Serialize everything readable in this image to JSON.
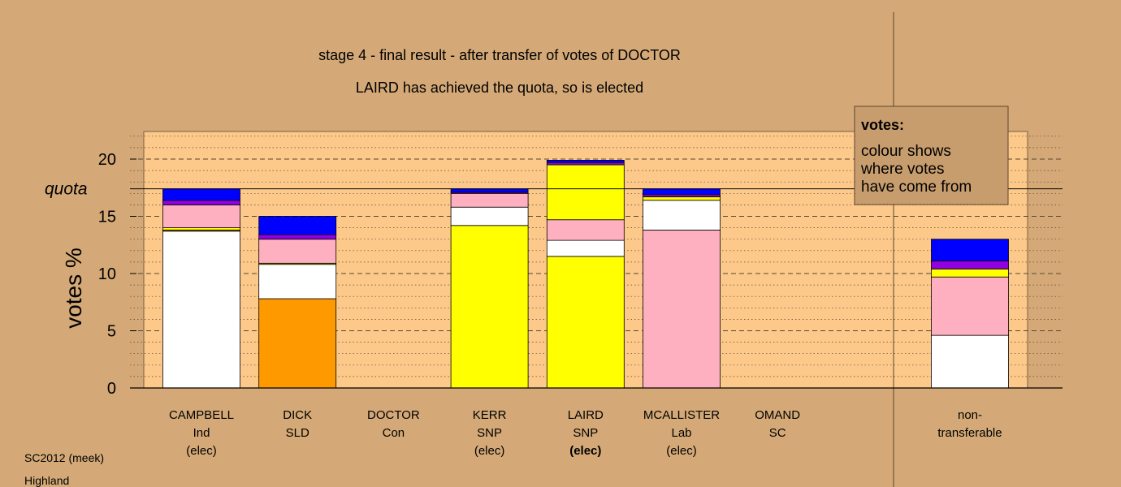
{
  "colors": {
    "background": "#d4a977",
    "plot_area": "#fcc98a",
    "legend_box": "#c89d6e",
    "Ind": "#ffffff",
    "SLD": "#ff9900",
    "SNP": "#ffff00",
    "Lab": "#ffb0c0",
    "SC": "#9000e0",
    "Con": "#0000ff"
  },
  "chart_data": {
    "type": "bar",
    "stacked": true,
    "title": "stage 4 - final result - after transfer of votes of DOCTOR",
    "subtitle": "LAIRD has achieved the quota, so is elected",
    "xlabel": "",
    "ylabel": "votes %",
    "ylim": [
      0,
      22.5
    ],
    "yticks": [
      0,
      5,
      10,
      15,
      20
    ],
    "quota": 17.4,
    "quota_label": "quota",
    "grid": true,
    "categories": [
      {
        "name": "CAMPBELL",
        "party": "Ind",
        "status": "(elec)",
        "status_bold": false
      },
      {
        "name": "DICK",
        "party": "SLD",
        "status": "",
        "status_bold": false
      },
      {
        "name": "DOCTOR",
        "party": "Con",
        "status": "",
        "status_bold": false
      },
      {
        "name": "KERR",
        "party": "SNP",
        "status": "(elec)",
        "status_bold": false
      },
      {
        "name": "LAIRD",
        "party": "SNP",
        "status": "(elec)",
        "status_bold": true
      },
      {
        "name": "MCALLISTER",
        "party": "Lab",
        "status": "(elec)",
        "status_bold": false
      },
      {
        "name": "OMAND",
        "party": "SC",
        "status": "",
        "status_bold": false
      }
    ],
    "nontransferable": {
      "line1": "non-",
      "line2": "transferable"
    },
    "series_order": [
      "Ind",
      "SLD",
      "SNP",
      "Lab",
      "SC",
      "Con"
    ],
    "stacks": [
      [
        [
          "Ind",
          13.7
        ],
        [
          "SLD",
          0.1
        ],
        [
          "SNP",
          0.2
        ],
        [
          "Lab",
          2.0
        ],
        [
          "SC",
          0.4
        ],
        [
          "Con",
          1.0
        ]
      ],
      [
        [
          "SLD",
          7.8
        ],
        [
          "Ind",
          3.0
        ],
        [
          "SNP",
          0.1
        ],
        [
          "Lab",
          2.1
        ],
        [
          "SC",
          0.4
        ],
        [
          "Con",
          1.6
        ]
      ],
      [],
      [
        [
          "SNP",
          14.2
        ],
        [
          "Ind",
          1.6
        ],
        [
          "Lab",
          1.2
        ],
        [
          "SC",
          0.1
        ],
        [
          "Con",
          0.3
        ]
      ],
      [
        [
          "SNP",
          11.5
        ],
        [
          "Ind",
          1.4
        ],
        [
          "Lab",
          1.8
        ],
        [
          "SNP",
          4.8
        ],
        [
          "SC",
          0.2
        ],
        [
          "Con",
          0.2
        ]
      ],
      [
        [
          "Lab",
          13.8
        ],
        [
          "Ind",
          2.6
        ],
        [
          "SNP",
          0.3
        ],
        [
          "SC",
          0.2
        ],
        [
          "Con",
          0.5
        ]
      ],
      []
    ],
    "nontransferable_stack": [
      [
        "Ind",
        4.6
      ],
      [
        "Lab",
        5.1
      ],
      [
        "SNP",
        0.7
      ],
      [
        "SC",
        0.7
      ],
      [
        "Con",
        1.9
      ]
    ]
  },
  "legend": {
    "title": "votes:",
    "lines": [
      "colour shows",
      "where votes",
      "have come from"
    ]
  },
  "footer": {
    "source": "SC2012 (meek)",
    "region": "Highland"
  }
}
